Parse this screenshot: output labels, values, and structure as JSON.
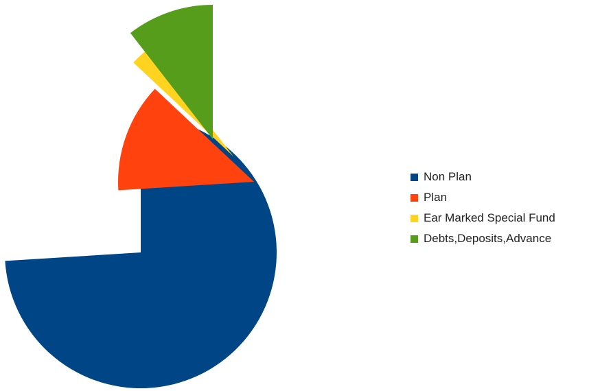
{
  "chart_data": {
    "type": "pie",
    "title": "",
    "exploded": true,
    "legend_position": "right",
    "slices": [
      {
        "label": "Non Plan",
        "value": 74.0,
        "color": "#004586"
      },
      {
        "label": "Plan",
        "value": 13.0,
        "color": "#ff420e"
      },
      {
        "label": "Ear Marked Special Fund",
        "value": 2.5,
        "color": "#ffd320"
      },
      {
        "label": "Debts,Deposits,Advance",
        "value": 10.5,
        "color": "#579d1c"
      }
    ]
  }
}
